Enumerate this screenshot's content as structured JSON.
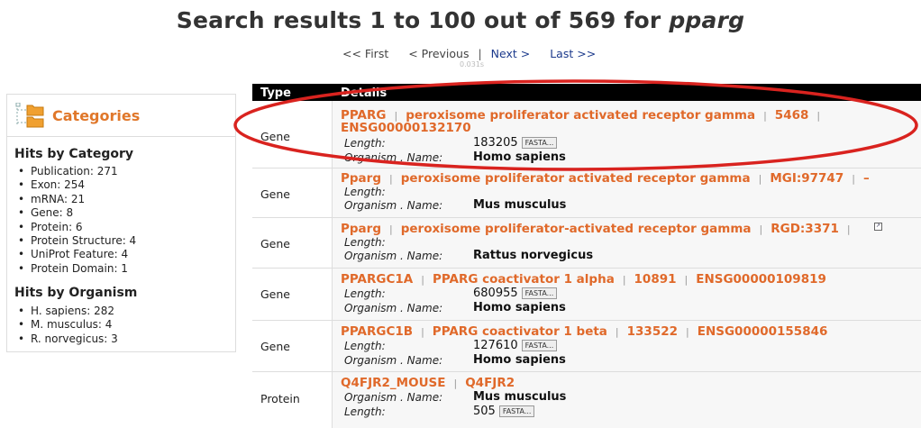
{
  "header": {
    "title_prefix": "Search results 1 to 100 out of 569 for ",
    "query": "pparg"
  },
  "pager": {
    "first": "<< First",
    "previous": "< Previous",
    "separator": "|",
    "next": "Next >",
    "last": "Last >>",
    "timing": "0.031s"
  },
  "sidebar": {
    "title": "Categories",
    "by_category_heading": "Hits by Category",
    "categories": [
      "Publication: 271",
      "Exon: 254",
      "mRNA: 21",
      "Gene: 8",
      "Protein: 6",
      "Protein Structure: 4",
      "UniProt Feature: 4",
      "Protein Domain: 1"
    ],
    "by_organism_heading": "Hits by Organism",
    "organisms": [
      "H. sapiens: 282",
      "M. musculus: 4",
      "R. norvegicus: 3"
    ]
  },
  "table": {
    "col_type": "Type",
    "col_details": "Details",
    "fasta_label": "FASTA...",
    "rows": [
      {
        "type": "Gene",
        "links": [
          "PPARG",
          "peroxisome proliferator activated receptor gamma",
          "5468"
        ],
        "links2": [
          "ENSG00000132170"
        ],
        "f1_label": "Length:",
        "f1_value": "183205",
        "f2_label": "Organism . Name:",
        "f2_value": "Homo sapiens"
      },
      {
        "type": "Gene",
        "links": [
          "Pparg",
          "peroxisome proliferator activated receptor gamma",
          "MGI:97747",
          "–"
        ],
        "f1_label": "Length:",
        "f1_value": "",
        "f2_label": "Organism . Name:",
        "f2_value": "Mus musculus"
      },
      {
        "type": "Gene",
        "links": [
          "Pparg",
          "peroxisome proliferator-activated receptor gamma",
          "RGD:3371"
        ],
        "f1_label": "Length:",
        "f1_value": "",
        "f2_label": "Organism . Name:",
        "f2_value": "Rattus norvegicus"
      },
      {
        "type": "Gene",
        "links": [
          "PPARGC1A",
          "PPARG coactivator 1 alpha",
          "10891",
          "ENSG00000109819"
        ],
        "f1_label": "Length:",
        "f1_value": "680955",
        "f2_label": "Organism . Name:",
        "f2_value": "Homo sapiens"
      },
      {
        "type": "Gene",
        "links": [
          "PPARGC1B",
          "PPARG coactivator 1 beta",
          "133522",
          "ENSG00000155846"
        ],
        "f1_label": "Length:",
        "f1_value": "127610",
        "f2_label": "Organism . Name:",
        "f2_value": "Homo sapiens"
      },
      {
        "type": "Protein",
        "links": [
          "Q4FJR2_MOUSE",
          "Q4FJR2"
        ],
        "f1_label": "Organism . Name:",
        "f1_value": "Mus musculus",
        "f2_label": "Length:",
        "f2_value": "505"
      }
    ]
  },
  "annotation": {
    "ellipse_color": "#d9231f"
  }
}
